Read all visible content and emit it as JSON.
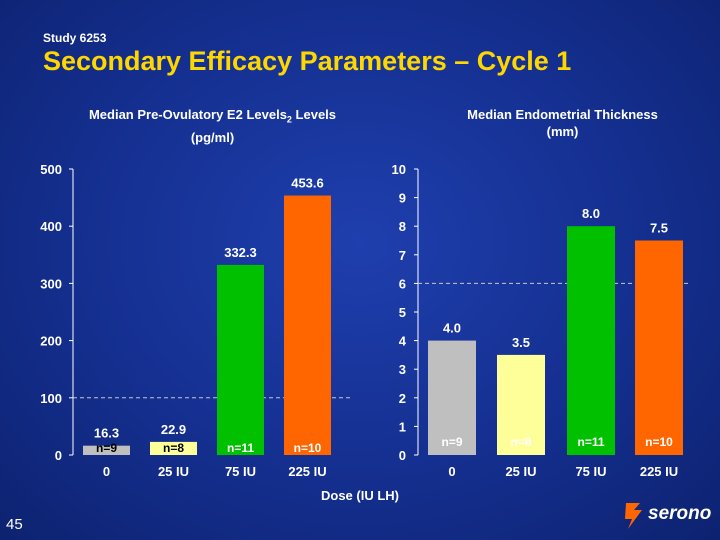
{
  "header": {
    "study": "Study 6253",
    "title": "Secondary Efficacy Parameters – Cycle 1"
  },
  "chart_data": [
    {
      "type": "bar",
      "title": "Median Pre-Ovulatory E2 Levels",
      "title_sub": "2",
      "title_unit": "(pg/ml)",
      "categories": [
        "0",
        "25 IU",
        "75 IU",
        "225 IU"
      ],
      "values": [
        16.3,
        22.9,
        332.3,
        453.6
      ],
      "value_labels": [
        "16.3",
        "22.9",
        "332.3",
        "453.6"
      ],
      "n_labels": [
        "n=9",
        "n=8",
        "n=11",
        "n=10"
      ],
      "colors": [
        "#bfbfbf",
        "#ffff99",
        "#00c000",
        "#ff6600"
      ],
      "ylim": [
        0,
        500
      ],
      "yticks": [
        0,
        100,
        200,
        300,
        400,
        500
      ],
      "reference_line": 100
    },
    {
      "type": "bar",
      "title": "Median Endometrial Thickness",
      "title_unit": "(mm)",
      "categories": [
        "0",
        "25 IU",
        "75 IU",
        "225 IU"
      ],
      "values": [
        4.0,
        3.5,
        8.0,
        7.5
      ],
      "value_labels": [
        "4.0",
        "3.5",
        "8.0",
        "7.5"
      ],
      "n_labels": [
        "n=9",
        "n=8",
        "n=11",
        "n=10"
      ],
      "colors": [
        "#bfbfbf",
        "#ffff99",
        "#00c000",
        "#ff6600"
      ],
      "ylim": [
        0,
        10
      ],
      "yticks": [
        0,
        1,
        2,
        3,
        4,
        5,
        6,
        7,
        8,
        9,
        10
      ],
      "reference_line": 6
    }
  ],
  "x_axis_title": "Dose (IU LH)",
  "footer": {
    "page_number": "45",
    "logo_text": "serono"
  }
}
